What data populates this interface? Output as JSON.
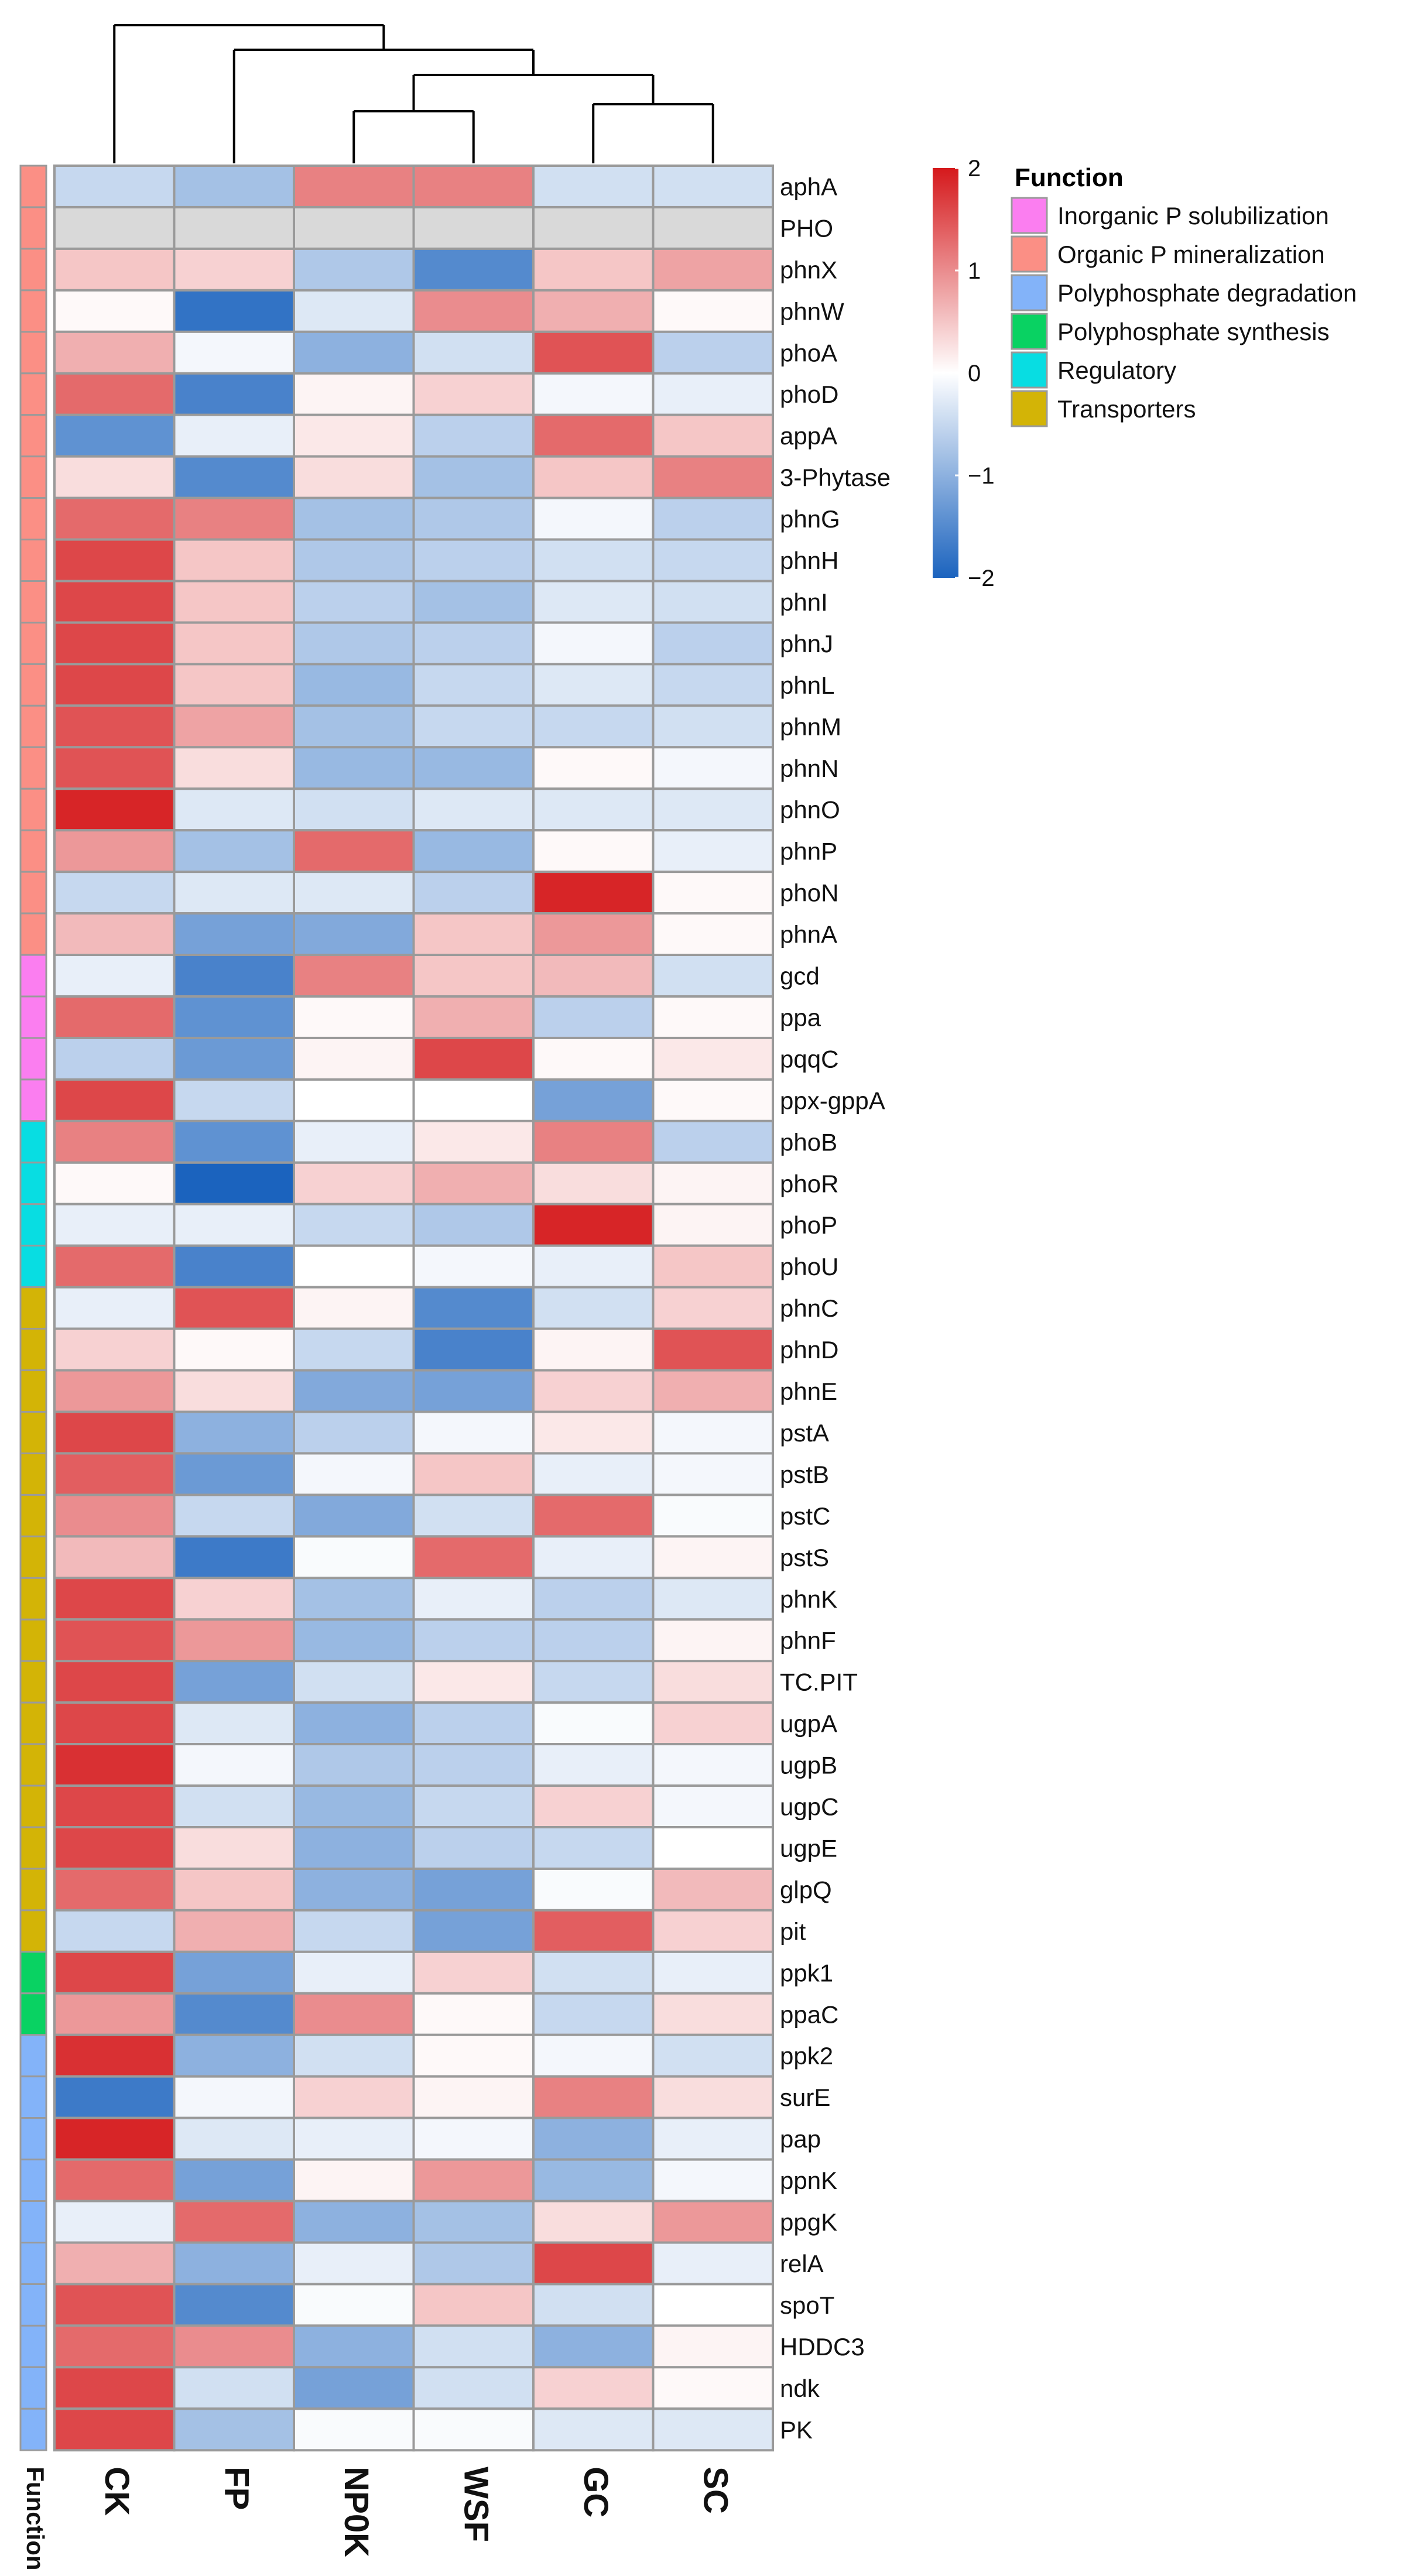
{
  "chart_data": {
    "type": "heatmap",
    "title": "",
    "columns": [
      "CK",
      "FP",
      "NP0K",
      "WSF",
      "GC",
      "SC"
    ],
    "rows": [
      "aphA",
      "PHO",
      "phnX",
      "phnW",
      "phoA",
      "phoD",
      "appA",
      "3-Phytase",
      "phnG",
      "phnH",
      "phnI",
      "phnJ",
      "phnL",
      "phnM",
      "phnN",
      "phnO",
      "phnP",
      "phoN",
      "phnA",
      "gcd",
      "ppa",
      "pqqC",
      "ppx-gppA",
      "phoB",
      "phoR",
      "phoP",
      "phoU",
      "phnC",
      "phnD",
      "phnE",
      "pstA",
      "pstB",
      "pstC",
      "pstS",
      "phnK",
      "phnF",
      "TC.PIT",
      "ugpA",
      "ugpB",
      "ugpC",
      "ugpE",
      "glpQ",
      "pit",
      "ppk1",
      "ppaC",
      "ppk2",
      "surE",
      "pap",
      "ppnK",
      "ppgK",
      "relA",
      "spoT",
      "HDDC3",
      "ndk",
      "PK"
    ],
    "values": [
      [
        -0.5,
        -0.8,
        1.1,
        1.1,
        -0.4,
        -0.4
      ],
      [
        null,
        null,
        null,
        null,
        null,
        null
      ],
      [
        0.5,
        0.4,
        -0.7,
        -1.5,
        0.5,
        0.8
      ],
      [
        0.05,
        -1.8,
        -0.3,
        1.0,
        0.7,
        0.05
      ],
      [
        0.7,
        -0.1,
        -1.0,
        -0.4,
        1.5,
        -0.6
      ],
      [
        1.3,
        -1.6,
        0.1,
        0.4,
        -0.1,
        -0.2
      ],
      [
        -1.4,
        -0.2,
        0.2,
        -0.6,
        1.3,
        0.5
      ],
      [
        0.3,
        -1.5,
        0.3,
        -0.8,
        0.5,
        1.1
      ],
      [
        1.3,
        1.1,
        -0.8,
        -0.7,
        -0.1,
        -0.6
      ],
      [
        1.6,
        0.5,
        -0.7,
        -0.6,
        -0.4,
        -0.5
      ],
      [
        1.6,
        0.5,
        -0.6,
        -0.8,
        -0.3,
        -0.4
      ],
      [
        1.6,
        0.5,
        -0.7,
        -0.6,
        -0.1,
        -0.6
      ],
      [
        1.6,
        0.5,
        -0.9,
        -0.5,
        -0.3,
        -0.5
      ],
      [
        1.5,
        0.8,
        -0.8,
        -0.5,
        -0.5,
        -0.4
      ],
      [
        1.5,
        0.3,
        -0.9,
        -0.9,
        0.05,
        -0.1
      ],
      [
        1.9,
        -0.3,
        -0.4,
        -0.3,
        -0.3,
        -0.3
      ],
      [
        0.9,
        -0.8,
        1.3,
        -0.9,
        0.05,
        -0.2
      ],
      [
        -0.5,
        -0.3,
        -0.3,
        -0.6,
        1.9,
        0.05
      ],
      [
        0.6,
        -1.2,
        -1.1,
        0.5,
        0.9,
        0.05
      ],
      [
        -0.2,
        -1.6,
        1.1,
        0.5,
        0.6,
        -0.4
      ],
      [
        1.3,
        -1.4,
        0.05,
        0.7,
        -0.6,
        0.05
      ],
      [
        -0.6,
        -1.3,
        0.1,
        1.6,
        0.05,
        0.2
      ],
      [
        1.6,
        -0.5,
        0.0,
        0.0,
        -1.2,
        0.05
      ],
      [
        1.1,
        -1.4,
        -0.2,
        0.2,
        1.1,
        -0.6
      ],
      [
        0.05,
        -2.0,
        0.4,
        0.7,
        0.3,
        0.1
      ],
      [
        -0.2,
        -0.2,
        -0.5,
        -0.7,
        1.9,
        0.1
      ],
      [
        1.3,
        -1.6,
        0.0,
        -0.1,
        -0.2,
        0.5
      ],
      [
        -0.2,
        1.5,
        0.1,
        -1.5,
        -0.4,
        0.4
      ],
      [
        0.4,
        0.05,
        -0.5,
        -1.6,
        0.1,
        1.5
      ],
      [
        0.9,
        0.3,
        -1.1,
        -1.2,
        0.4,
        0.7
      ],
      [
        1.6,
        -1.0,
        -0.6,
        -0.1,
        0.2,
        -0.1
      ],
      [
        1.4,
        -1.3,
        -0.1,
        0.5,
        -0.2,
        -0.1
      ],
      [
        1.0,
        -0.5,
        -1.1,
        -0.4,
        1.3,
        -0.05
      ],
      [
        0.6,
        -1.7,
        -0.05,
        1.3,
        -0.2,
        0.1
      ],
      [
        1.6,
        0.4,
        -0.8,
        -0.2,
        -0.6,
        -0.3
      ],
      [
        1.5,
        0.9,
        -0.9,
        -0.6,
        -0.6,
        0.1
      ],
      [
        1.6,
        -1.2,
        -0.4,
        0.2,
        -0.5,
        0.3
      ],
      [
        1.6,
        -0.3,
        -1.0,
        -0.6,
        -0.05,
        0.4
      ],
      [
        1.8,
        -0.1,
        -0.7,
        -0.6,
        -0.2,
        -0.1
      ],
      [
        1.6,
        -0.4,
        -0.9,
        -0.5,
        0.4,
        -0.1
      ],
      [
        1.6,
        0.3,
        -1.0,
        -0.6,
        -0.5,
        0.0
      ],
      [
        1.3,
        0.5,
        -1.0,
        -1.2,
        -0.05,
        0.6
      ],
      [
        -0.5,
        0.7,
        -0.5,
        -1.2,
        1.4,
        0.4
      ],
      [
        1.6,
        -1.2,
        -0.2,
        0.4,
        -0.4,
        -0.2
      ],
      [
        0.9,
        -1.5,
        1.0,
        0.05,
        -0.5,
        0.3
      ],
      [
        1.8,
        -1.0,
        -0.4,
        0.05,
        -0.1,
        -0.4
      ],
      [
        -1.7,
        -0.1,
        0.4,
        0.1,
        1.1,
        0.3
      ],
      [
        1.9,
        -0.3,
        -0.2,
        -0.1,
        -1.0,
        -0.2
      ],
      [
        1.3,
        -1.2,
        0.1,
        0.9,
        -0.9,
        -0.1
      ],
      [
        -0.2,
        1.3,
        -1.0,
        -0.8,
        0.3,
        0.9
      ],
      [
        0.7,
        -1.0,
        -0.2,
        -0.7,
        1.6,
        -0.2
      ],
      [
        1.5,
        -1.5,
        -0.05,
        0.5,
        -0.4,
        0.0
      ],
      [
        1.3,
        1.0,
        -1.0,
        -0.4,
        -1.0,
        0.1
      ],
      [
        1.6,
        -0.4,
        -1.2,
        -0.4,
        0.4,
        0.05
      ],
      [
        1.6,
        -0.8,
        -0.05,
        -0.05,
        -0.3,
        -0.3
      ]
    ],
    "missing_color": "#d9d9d9",
    "function_annotation": [
      "Organic P mineralization",
      "Organic P mineralization",
      "Organic P mineralization",
      "Organic P mineralization",
      "Organic P mineralization",
      "Organic P mineralization",
      "Organic P mineralization",
      "Organic P mineralization",
      "Organic P mineralization",
      "Organic P mineralization",
      "Organic P mineralization",
      "Organic P mineralization",
      "Organic P mineralization",
      "Organic P mineralization",
      "Organic P mineralization",
      "Organic P mineralization",
      "Organic P mineralization",
      "Organic P mineralization",
      "Organic P mineralization",
      "Inorganic P solubilization",
      "Inorganic P solubilization",
      "Inorganic P solubilization",
      "Inorganic P solubilization",
      "Regulatory",
      "Regulatory",
      "Regulatory",
      "Regulatory",
      "Transporters",
      "Transporters",
      "Transporters",
      "Transporters",
      "Transporters",
      "Transporters",
      "Transporters",
      "Transporters",
      "Transporters",
      "Transporters",
      "Transporters",
      "Transporters",
      "Transporters",
      "Transporters",
      "Transporters",
      "Transporters",
      "Polyphosphate synthesis",
      "Polyphosphate synthesis",
      "Polyphosphate degradation",
      "Polyphosphate degradation",
      "Polyphosphate degradation",
      "Polyphosphate degradation",
      "Polyphosphate degradation",
      "Polyphosphate degradation",
      "Polyphosphate degradation",
      "Polyphosphate degradation",
      "Polyphosphate degradation",
      "Polyphosphate degradation"
    ],
    "annotation_label": "Function",
    "colorbar": {
      "min": -2,
      "max": 2,
      "ticks": [
        2,
        1,
        0,
        -1,
        -2
      ],
      "tick_labels": [
        "2",
        "1",
        "0",
        "−1",
        "−2"
      ],
      "colors": {
        "low": "#1b63be",
        "mid": "#ffffff",
        "high": "#d5191c"
      }
    },
    "legend": {
      "title": "Function",
      "entries": [
        {
          "label": "Inorganic P solubilization",
          "color": "#fb7ef0"
        },
        {
          "label": "Organic P mineralization",
          "color": "#fb8f85"
        },
        {
          "label": "Polyphosphate degradation",
          "color": "#83b3f9"
        },
        {
          "label": "Polyphosphate synthesis",
          "color": "#09d262"
        },
        {
          "label": "Regulatory",
          "color": "#08dde2"
        },
        {
          "label": "Transporters",
          "color": "#d3b406"
        }
      ]
    },
    "dendrogram": {
      "leaves": [
        "CK",
        "FP",
        "NP0K",
        "WSF",
        "GC",
        "SC"
      ],
      "merges": [
        [
          "NP0K",
          "WSF"
        ],
        [
          "GC",
          "SC"
        ],
        [
          "NP0K+WSF",
          "GC+SC"
        ],
        [
          "FP",
          "NP0K+WSF+GC+SC"
        ],
        [
          "CK",
          "rest"
        ]
      ]
    }
  }
}
